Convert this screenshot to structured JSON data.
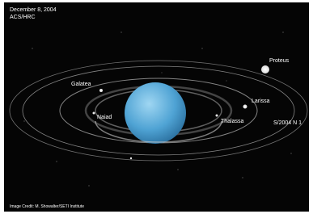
{
  "header": {
    "date": "December 8, 2004",
    "instrument": "ACS/HRC"
  },
  "moons": [
    {
      "label": "Proteus"
    },
    {
      "label": "Galatea"
    },
    {
      "label": "Larissa"
    },
    {
      "label": "Naiad"
    },
    {
      "label": "Thalassa"
    },
    {
      "label": "S/2004 N 1"
    }
  ],
  "credit": "Image Credit: M. Showalter/SETI Institute"
}
